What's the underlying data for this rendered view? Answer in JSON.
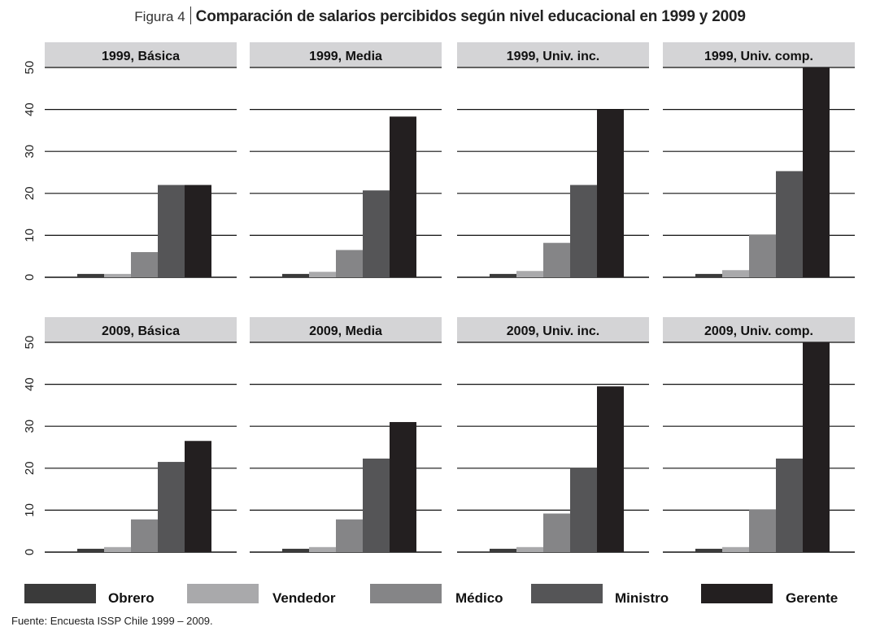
{
  "header": {
    "figure_label": "Figura 4",
    "title": "Comparación de salarios percibidos según nivel educacional en 1999 y 2009"
  },
  "footer": {
    "source": "Fuente: Encuesta ISSP Chile 1999 – 2009."
  },
  "chart_data": {
    "type": "bar",
    "layout": "faceted-2x4",
    "categories": [
      "Obrero",
      "Vendedor",
      "Médico",
      "Ministro",
      "Gerente"
    ],
    "colors": {
      "Obrero": "#3a3a3a",
      "Vendedor": "#a9a9ab",
      "Médico": "#858587",
      "Ministro": "#555557",
      "Gerente": "#231f20"
    },
    "yticks": [
      0,
      10,
      20,
      30,
      40,
      50
    ],
    "ylim": [
      0,
      50
    ],
    "grid": true,
    "legend": "bottom",
    "panels": [
      {
        "title": "1999, Básica",
        "values": [
          0.8,
          0.8,
          6,
          22,
          22
        ]
      },
      {
        "title": "1999, Media",
        "values": [
          0.8,
          1.3,
          6.5,
          20.7,
          38.3
        ]
      },
      {
        "title": "1999, Univ. inc.",
        "values": [
          0.8,
          1.5,
          8.2,
          22,
          40
        ]
      },
      {
        "title": "1999, Univ. comp.",
        "values": [
          0.8,
          1.7,
          10.2,
          25.3,
          50
        ]
      },
      {
        "title": "2009, Básica",
        "values": [
          0.8,
          1.2,
          7.8,
          21.5,
          26.5
        ]
      },
      {
        "title": "2009, Media",
        "values": [
          0.8,
          1.2,
          7.8,
          22.3,
          31
        ]
      },
      {
        "title": "2009, Univ. inc.",
        "values": [
          0.8,
          1.2,
          9.2,
          20,
          39.5
        ]
      },
      {
        "title": "2009, Univ. comp.",
        "values": [
          0.8,
          1.2,
          10.2,
          22.3,
          50
        ]
      }
    ]
  }
}
